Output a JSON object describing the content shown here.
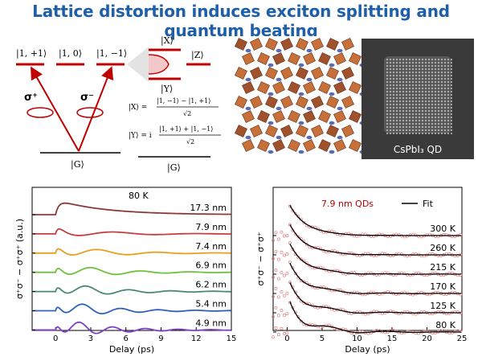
{
  "title": "Lattice distortion induces exciton splitting and quantum beating",
  "diagram": {
    "levels": [
      "|1, +1⟩",
      "|1, 0⟩",
      "|1, −1⟩"
    ],
    "split_levels": [
      "|X⟩",
      "|Y⟩",
      "|Z⟩"
    ],
    "ground": "|G⟩",
    "ground_right": "|G⟩",
    "sigma_plus": "σ⁺",
    "sigma_minus": "σ⁻",
    "eqX_lhs": "|X⟩ =",
    "eqX_num": "|1, −1⟩ − |1, +1⟩",
    "eqX_den": "√2",
    "eqY_lhs": "|Y⟩ = i",
    "eqY_num": "|1, +1⟩ + |1, −1⟩",
    "eqY_den": "√2"
  },
  "tem_label": "CsPbI₃ QD",
  "colors": {
    "title": "#1f5fa8",
    "levels": "#c00000",
    "fit": "#000000",
    "data_right": "#e08080"
  },
  "chart_data": [
    {
      "type": "line",
      "xlabel": "Delay (ps)",
      "ylabel": "σ⁺σ⁻ − σ⁺σ⁺ (a.u.)",
      "xlim": [
        -2,
        15
      ],
      "xticks": [
        0,
        3,
        6,
        9,
        12,
        15
      ],
      "annotation": "80 K",
      "series": [
        {
          "name": "17.3 nm",
          "color": "#8a3a3a",
          "amp": 0,
          "period": 3.5
        },
        {
          "name": "7.9 nm",
          "color": "#c44040",
          "amp": 0.45,
          "period": 7.0
        },
        {
          "name": "7.4 nm",
          "color": "#e8a020",
          "amp": 0.55,
          "period": 5.0
        },
        {
          "name": "6.9 nm",
          "color": "#70c040",
          "amp": 0.6,
          "period": 4.2
        },
        {
          "name": "6.2 nm",
          "color": "#4a8a70",
          "amp": 0.6,
          "period": 3.6
        },
        {
          "name": "5.4 nm",
          "color": "#3060c0",
          "amp": 0.65,
          "period": 3.2
        },
        {
          "name": "4.9 nm",
          "color": "#8040c0",
          "amp": 0.7,
          "period": 2.8
        }
      ]
    },
    {
      "type": "line",
      "xlabel": "Delay (ps)",
      "ylabel": "σ⁺σ⁻ − σ⁺σ⁺",
      "xlim": [
        -2,
        25
      ],
      "xticks": [
        0,
        5,
        10,
        15,
        20,
        25
      ],
      "annotation": "7.9 nm QDs",
      "legend": "Fit",
      "series": [
        {
          "name": "300 K",
          "amp": 0.05,
          "period": 8
        },
        {
          "name": "260 K",
          "amp": 0.1,
          "period": 8
        },
        {
          "name": "215 K",
          "amp": 0.15,
          "period": 8
        },
        {
          "name": "170 K",
          "amp": 0.25,
          "period": 8
        },
        {
          "name": "125 K",
          "amp": 0.35,
          "period": 8
        },
        {
          "name": "80 K",
          "amp": 0.5,
          "period": 8
        }
      ]
    }
  ]
}
